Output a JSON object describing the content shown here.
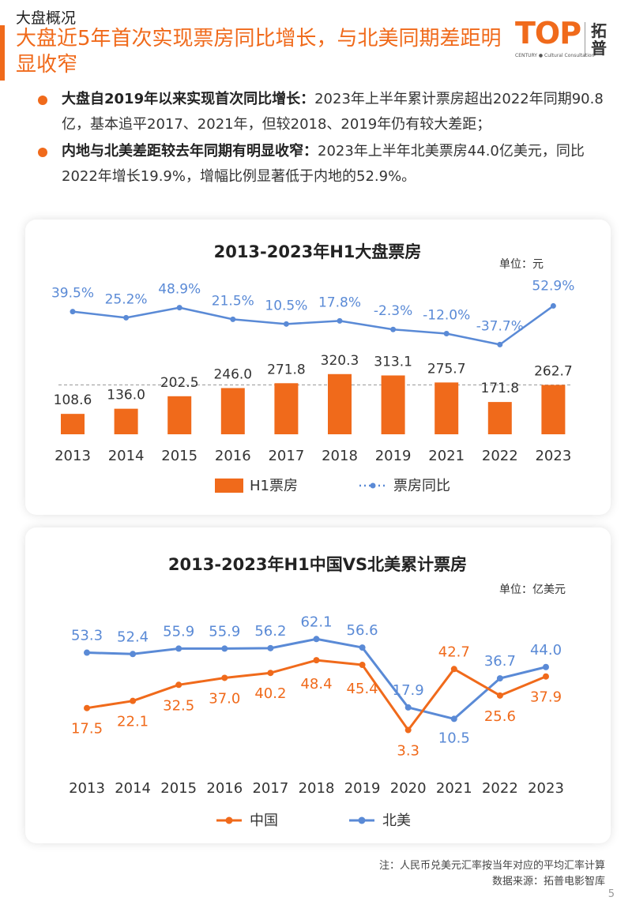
{
  "section_label": "大盘概况",
  "headline": "大盘近5年首次实现票房同比增长，与北美同期差距明显收窄",
  "logo": {
    "top_text": "TOP",
    "sub_text": "CENTURY ● Cultural Consultation",
    "cn_text": "拓普"
  },
  "bullets": [
    {
      "bold": "大盘自2019年以来实现首次同比增长：",
      "text": "2023年上半年累计票房超出2022年同期90.8亿，基本追平2017、2021年，但较2018、2019年仍有较大差距；"
    },
    {
      "bold": "内地与北美差距较去年同期有明显收窄：",
      "text": "2023年上半年北美票房44.0亿美元，同比2022年增长19.9%，增幅比例显著低于内地的52.9%。"
    }
  ],
  "colors": {
    "accent": "#f06a1b",
    "blue": "#5a8ad6",
    "bar": "#f06a1b"
  },
  "chart_data": [
    {
      "type": "bar",
      "title": "2013-2023年H1大盘票房",
      "unit": "单位：元",
      "categories": [
        "2013",
        "2014",
        "2015",
        "2016",
        "2017",
        "2018",
        "2019",
        "2021",
        "2022",
        "2023"
      ],
      "series": [
        {
          "name": "H1票房",
          "type": "bar",
          "values": [
            108.6,
            136.0,
            202.5,
            246.0,
            271.8,
            320.3,
            313.1,
            275.7,
            171.8,
            262.7
          ],
          "labels": [
            "108.6",
            "136.0",
            "202.5",
            "246.0",
            "271.8",
            "320.3",
            "313.1",
            "275.7",
            "171.8",
            "262.7"
          ]
        },
        {
          "name": "票房同比",
          "type": "line",
          "values": [
            39.5,
            25.2,
            48.9,
            21.5,
            10.5,
            17.8,
            -2.3,
            -12.0,
            -37.7,
            52.9
          ],
          "labels": [
            "39.5%",
            "25.2%",
            "48.9%",
            "21.5%",
            "10.5%",
            "17.8%",
            "-2.3%",
            "-12.0%",
            "-37.7%",
            "52.9%"
          ]
        }
      ],
      "reference_line": 262.7
    },
    {
      "type": "line",
      "title": "2013-2023年H1中国VS北美累计票房",
      "unit": "单位：亿美元",
      "categories": [
        "2013",
        "2014",
        "2015",
        "2016",
        "2017",
        "2018",
        "2019",
        "2020",
        "2021",
        "2022",
        "2023"
      ],
      "series": [
        {
          "name": "中国",
          "values": [
            17.5,
            22.1,
            32.5,
            37.0,
            40.2,
            48.4,
            45.4,
            3.3,
            42.7,
            25.6,
            37.9
          ],
          "labels": [
            "17.5",
            "22.1",
            "32.5",
            "37.0",
            "40.2",
            "48.4",
            "45.4",
            "3.3",
            "42.7",
            "25.6",
            "37.9"
          ]
        },
        {
          "name": "北美",
          "values": [
            53.3,
            52.4,
            55.9,
            55.9,
            56.2,
            62.1,
            56.6,
            17.9,
            10.5,
            36.7,
            44.0
          ],
          "labels": [
            "53.3",
            "52.4",
            "55.9",
            "55.9",
            "56.2",
            "62.1",
            "56.6",
            "17.9",
            "10.5",
            "36.7",
            "44.0"
          ]
        }
      ]
    }
  ],
  "footnote": {
    "line1": "注：人民币兑美元汇率按当年对应的平均汇率计算",
    "line2": "数据来源：拓普电影智库"
  },
  "page_number": "5"
}
